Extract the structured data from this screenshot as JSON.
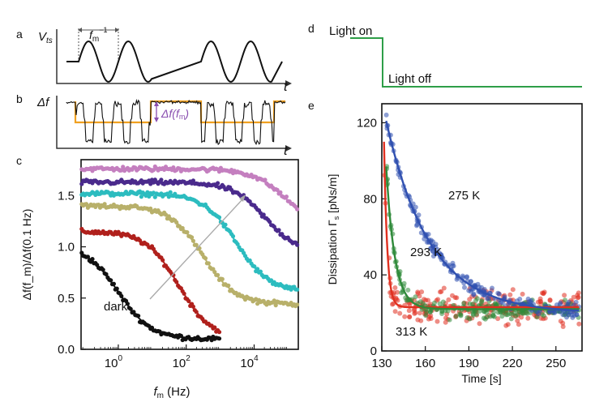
{
  "panels": {
    "a": "a",
    "b": "b",
    "c": "c",
    "d": "d",
    "e": "e"
  },
  "panel_a": {
    "ylabel": "V",
    "ylabel_sub": "ts",
    "xlabel": "t",
    "period_label": "f",
    "period_sub": "m",
    "period_sup": "−1"
  },
  "panel_b": {
    "ylabel": "Δf",
    "xlabel": "t",
    "annotation": "Δf(f",
    "annotation_sub": "m",
    "annotation_end": ")"
  },
  "panel_d": {
    "on_label": "Light on",
    "off_label": "Light off"
  },
  "colors": {
    "dark": "#111111",
    "red": "#b0201c",
    "olive": "#b8b06a",
    "cyan": "#2cbcbf",
    "purple": "#4a2a8c",
    "pink": "#c47fbf",
    "e_blue": "#3050b0",
    "e_green": "#2f8a3a",
    "e_red": "#e03020",
    "light_step": "#2e9e48",
    "orange": "#f0a020"
  },
  "chart_data": [
    {
      "id": "c",
      "type": "scatter",
      "xscale": "log",
      "xlim": [
        0.08,
        200000
      ],
      "ylim": [
        0.0,
        1.85
      ],
      "xticks": [
        "10",
        "10",
        "10"
      ],
      "xtick_exps": [
        "0",
        "2",
        "4"
      ],
      "yticks": [
        "0.0",
        "0.5",
        "1.0",
        "1.5"
      ],
      "ytick_values": [
        0,
        0.5,
        1.0,
        1.5
      ],
      "xlabel": "f",
      "xlabel_sub": "m",
      "xlabel_unit": " (Hz)",
      "ylabel": "Δf(f_m)/Δf(0.1 Hz)",
      "annotation": "dark",
      "series": [
        {
          "color": "dark",
          "plateau": 1.02,
          "fc": 1.0,
          "floor": 0.1,
          "xmax": 1000
        },
        {
          "color": "red",
          "plateau": 1.15,
          "fc": 60,
          "floor": 0.1,
          "xmax": 1000
        },
        {
          "color": "olive",
          "plateau": 1.4,
          "fc": 300,
          "floor": 0.44,
          "xmax": 200000
        },
        {
          "color": "cyan",
          "plateau": 1.52,
          "fc": 3000,
          "floor": 0.56,
          "xmax": 200000
        },
        {
          "color": "purple",
          "plateau": 1.63,
          "fc": 20000,
          "floor": 0.95,
          "xmax": 200000
        },
        {
          "color": "pink",
          "plateau": 1.76,
          "fc": 80000,
          "floor": 1.2,
          "xmax": 200000
        }
      ]
    },
    {
      "id": "e",
      "type": "scatter",
      "xlim": [
        130,
        268
      ],
      "ylim": [
        0,
        130
      ],
      "xticks": [
        130,
        160,
        190,
        220,
        250
      ],
      "yticks": [
        0,
        40,
        80,
        120
      ],
      "xlabel": "Time [s]",
      "ylabel": "Dissipation Γ",
      "ylabel_sub": "s",
      "ylabel_unit": " [pNs/m]",
      "series": [
        {
          "name": "275 K",
          "color": "e_blue",
          "t0": 133,
          "y0": 121,
          "tau": 30,
          "floor": 20
        },
        {
          "name": "293 K",
          "color": "e_green",
          "t0": 133,
          "y0": 97,
          "tau": 6,
          "floor": 22
        },
        {
          "name": "313 K",
          "color": "e_red",
          "t0": 131.5,
          "y0": 110,
          "tau": 2.2,
          "floor": 23
        }
      ]
    }
  ]
}
